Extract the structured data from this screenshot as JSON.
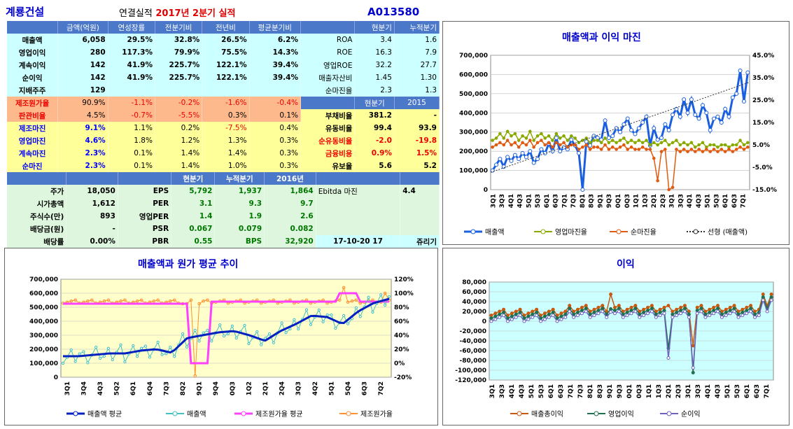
{
  "header": {
    "company": "계룡건설",
    "period_label": "연결실적",
    "period": "2017년 2분기 실적",
    "code": "A013580"
  },
  "tableA": {
    "headers": [
      "",
      "금액(억원)",
      "연성장률",
      "전분기비",
      "전년비",
      "평균분기비"
    ],
    "rows": [
      [
        "매출액",
        "6,058",
        "29.5%",
        "32.8%",
        "26.5%",
        "6.2%"
      ],
      [
        "영업이익",
        "280",
        "117.3%",
        "79.9%",
        "75.5%",
        "14.3%"
      ],
      [
        "계속이익",
        "142",
        "41.9%",
        "225.7%",
        "122.1%",
        "39.4%"
      ],
      [
        "순이익",
        "142",
        "41.9%",
        "225.7%",
        "122.1%",
        "39.4%"
      ],
      [
        "지배주주",
        "129",
        "",
        "",
        "",
        ""
      ],
      [
        "제조원가율",
        "90.9%",
        "-1.1%",
        "-0.2%",
        "-1.6%",
        "-0.4%"
      ],
      [
        "판관비율",
        "4.5%",
        "-0.7%",
        "-5.5%",
        "0.3%",
        "0.1%"
      ],
      [
        "제조마진",
        "9.1%",
        "1.1%",
        "0.2%",
        "-7.5%",
        "0.4%"
      ],
      [
        "영업마진",
        "4.6%",
        "1.8%",
        "1.2%",
        "1.3%",
        "0.3%"
      ],
      [
        "계속마진",
        "2.3%",
        "0.1%",
        "1.4%",
        "1.4%",
        "0.3%"
      ],
      [
        "순마진",
        "2.3%",
        "0.1%",
        "1.4%",
        "1.0%",
        "0.3%"
      ]
    ]
  },
  "tableB": {
    "headers": [
      "",
      "현분기",
      "누적분기"
    ],
    "rows": [
      [
        "ROA",
        "3.4",
        "1.6"
      ],
      [
        "ROE",
        "16.3",
        "7.9"
      ],
      [
        "영업ROE",
        "32.2",
        "27.7"
      ],
      [
        "매출자산비",
        "1.45",
        "1.30"
      ],
      [
        "순마진율",
        "2.3",
        "1.3"
      ]
    ],
    "headers2": [
      "",
      "현분기",
      "2015"
    ],
    "rows2": [
      [
        "부채비율",
        "381.2",
        "-"
      ],
      [
        "유동비율",
        "99.4",
        "93.9"
      ],
      [
        "순유동비율",
        "-2.0",
        "-19.8"
      ],
      [
        "금융비용",
        "0.9%",
        "1.5%"
      ],
      [
        "유보율",
        "5.6",
        "5.2"
      ]
    ]
  },
  "tableC": {
    "headers": [
      "",
      "",
      "",
      "현분기",
      "누적분기",
      "2016년"
    ],
    "rows": [
      [
        "주가",
        "18,050",
        "EPS",
        "5,792",
        "1,937",
        "1,864"
      ],
      [
        "시가총액",
        "1,612",
        "PER",
        "3.1",
        "9.3",
        "9.7"
      ],
      [
        "주식수(만)",
        "893",
        "영업PER",
        "1.4",
        "1.9",
        "2.6"
      ],
      [
        "배당금(원)",
        "-",
        "PSR",
        "0.067",
        "0.079",
        "0.082"
      ],
      [
        "배당률",
        "0.00%",
        "PBR",
        "0.55",
        "BPS",
        "32,920"
      ]
    ],
    "ebitda_label": "Ebitda 마진",
    "ebitda": "4.4",
    "date": "17-10-20 17",
    "ticker_name": "쥬리기"
  },
  "chart_data": [
    {
      "title": "매출액과 이익 마진",
      "type": "line",
      "ylim": [
        0,
        700000
      ],
      "y2lim": [
        -15,
        45
      ],
      "yticks": [
        "0",
        "100,000",
        "200,000",
        "300,000",
        "400,000",
        "500,000",
        "600,000",
        "700,000"
      ],
      "y2ticks": [
        "-15.0%",
        "-5.0%",
        "5.0%",
        "15.0%",
        "25.0%",
        "35.0%",
        "45.0%"
      ],
      "xticks": [
        "3Q1",
        "3Q3",
        "4Q1",
        "4Q3",
        "5Q1",
        "5Q3",
        "6Q1",
        "6Q3",
        "7Q1",
        "7Q3",
        "8Q1",
        "8Q3",
        "9Q1",
        "9Q3",
        "0Q1",
        "0Q3",
        "1Q1",
        "1Q3",
        "2Q1",
        "2Q3",
        "3Q1",
        "3Q3",
        "4Q1",
        "4Q3",
        "5Q1",
        "5Q3",
        "6Q1",
        "6Q3",
        "7Q1"
      ],
      "series": [
        {
          "name": "매출액",
          "axis": "left",
          "color": "#1a5fe0",
          "values": [
            100000,
            130000,
            160000,
            120000,
            170000,
            150000,
            180000,
            160000,
            190000,
            170000,
            200000,
            140000,
            160000,
            210000,
            190000,
            240000,
            200000,
            270000,
            200000,
            220000,
            210000,
            260000,
            230000,
            190000,
            0,
            250000,
            230000,
            280000,
            270000,
            260000,
            360000,
            270000,
            280000,
            320000,
            300000,
            340000,
            370000,
            310000,
            290000,
            320000,
            350000,
            380000,
            230000,
            320000,
            260000,
            270000,
            340000,
            310000,
            390000,
            420000,
            380000,
            470000,
            400000,
            470000,
            390000,
            370000,
            440000,
            400000,
            310000,
            370000,
            380000,
            350000,
            420000,
            380000,
            480000,
            500000,
            620000,
            460000,
            610000
          ]
        },
        {
          "name": "영업마진율",
          "axis": "right",
          "color": "#88aa00",
          "values": [
            7,
            8,
            10,
            8,
            11,
            9,
            10,
            7,
            9,
            8,
            11,
            7,
            9,
            10,
            8,
            9,
            7,
            10,
            8,
            9,
            7,
            9,
            8,
            6,
            7,
            8,
            6,
            7,
            7,
            6,
            8,
            6,
            7,
            6,
            7,
            8,
            6,
            7,
            6,
            7,
            6,
            7,
            5,
            6,
            5,
            6,
            7,
            5,
            6,
            7,
            5,
            6,
            5,
            6,
            4,
            5,
            6,
            4,
            5,
            5,
            4,
            5,
            5,
            4,
            5,
            5,
            7,
            5,
            6
          ]
        },
        {
          "name": "순마진율",
          "axis": "right",
          "color": "#e05a10",
          "values": [
            4,
            5,
            6,
            5,
            7,
            5,
            6,
            4,
            6,
            5,
            7,
            4,
            6,
            7,
            5,
            6,
            4,
            6,
            5,
            6,
            4,
            5,
            5,
            3,
            4,
            5,
            3,
            4,
            4,
            3,
            5,
            3,
            4,
            3,
            4,
            5,
            3,
            4,
            3,
            3,
            4,
            3,
            3,
            -1,
            -11,
            2,
            3,
            -15,
            -14,
            3,
            2,
            3,
            2,
            3,
            2,
            3,
            2,
            3,
            2,
            3,
            2,
            3,
            2,
            3,
            2,
            3,
            4,
            3,
            4
          ]
        }
      ],
      "trend": {
        "name": "선형 (매출액)",
        "from": 90000,
        "to": 560000
      }
    },
    {
      "title": "매출액과 원가 평균 추이",
      "type": "line",
      "ylim": [
        0,
        700000
      ],
      "y2lim": [
        -20,
        120
      ],
      "yticks": [
        "0",
        "100,000",
        "200,000",
        "300,000",
        "400,000",
        "500,000",
        "600,000",
        "700,000"
      ],
      "y2ticks": [
        "-20%",
        "0%",
        "20%",
        "40%",
        "60%",
        "80%",
        "100%",
        "120%"
      ],
      "xticks": [
        "3Q1",
        "3Q4",
        "4Q3",
        "5Q2",
        "6Q1",
        "6Q4",
        "7Q3",
        "8Q2",
        "9Q1",
        "9Q4",
        "0Q3",
        "1Q2",
        "2Q1",
        "2Q4",
        "3Q3",
        "4Q2",
        "5Q1",
        "5Q4",
        "6Q3",
        "7Q2"
      ],
      "series": [
        {
          "name": "매출액 평균",
          "color": "#0020c0"
        },
        {
          "name": "매출액",
          "color": "#40c0c0"
        },
        {
          "name": "제조원가율 평균",
          "color": "#ff40ff"
        },
        {
          "name": "제조원가율",
          "color": "#ff9030"
        }
      ]
    },
    {
      "title": "이익",
      "type": "line",
      "ylim": [
        -120000,
        80000
      ],
      "yticks": [
        "-120,000",
        "-100,000",
        "-80,000",
        "-60,000",
        "-40,000",
        "-20,000",
        "0",
        "20,000",
        "40,000",
        "60,000",
        "80,000"
      ],
      "xticks": [
        "3Q1",
        "3Q3",
        "4Q1",
        "4Q3",
        "5Q1",
        "5Q3",
        "6Q1",
        "6Q3",
        "7Q1",
        "7Q3",
        "8Q1",
        "8Q3",
        "9Q1",
        "9Q3",
        "0Q1",
        "0Q3",
        "1Q1",
        "1Q3",
        "2Q1",
        "2Q3",
        "3Q1",
        "3Q3",
        "4Q1",
        "4Q3",
        "5Q1",
        "5Q3",
        "6Q1",
        "6Q3",
        "7Q1"
      ],
      "series": [
        {
          "name": "매출총이익",
          "color": "#c85a10"
        },
        {
          "name": "영업이익",
          "color": "#207050"
        },
        {
          "name": "순이익",
          "color": "#7060c0"
        }
      ]
    }
  ]
}
